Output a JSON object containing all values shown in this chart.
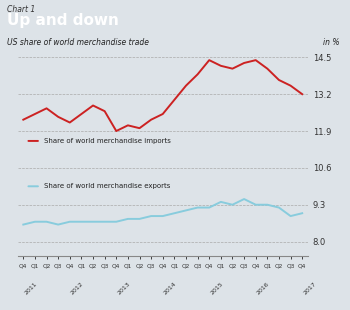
{
  "chart_label": "Chart 1",
  "title": "Up and down",
  "subtitle": "US share of world merchandise trade",
  "ylabel_right": "in %",
  "background_color": "#dde3e8",
  "header_bg": "#2b6ca8",
  "header_text_color": "#ffffff",
  "chart_label_bg": "#f0f0f0",
  "yticks": [
    8.0,
    9.3,
    10.6,
    11.9,
    13.2,
    14.5
  ],
  "ylim": [
    7.5,
    15.1
  ],
  "imports_color": "#cc2222",
  "exports_color": "#88ccdd",
  "imports_label": "Share of world merchandise imports",
  "exports_label": "Share of world merchandise exports",
  "x_labels": [
    "Q4",
    "Q1",
    "Q2",
    "Q3",
    "Q4",
    "Q1",
    "Q2",
    "Q3",
    "Q4",
    "Q1",
    "Q2",
    "Q3",
    "Q4",
    "Q1",
    "Q2",
    "Q3",
    "Q4",
    "Q1",
    "Q2",
    "Q3",
    "Q4",
    "Q1",
    "Q2",
    "Q3",
    "Q4"
  ],
  "year_labels": [
    "2011",
    "2012",
    "2013",
    "2014",
    "2015",
    "2016",
    "2017"
  ],
  "year_tick_positions": [
    0,
    4,
    8,
    12,
    16,
    20,
    24
  ],
  "imports": [
    12.3,
    12.5,
    12.7,
    12.4,
    12.2,
    12.5,
    12.8,
    12.6,
    11.9,
    12.1,
    12.0,
    12.3,
    12.5,
    13.0,
    13.5,
    13.9,
    14.4,
    14.2,
    14.1,
    14.3,
    14.4,
    14.1,
    13.7,
    13.5,
    13.2
  ],
  "exports": [
    8.6,
    8.7,
    8.7,
    8.6,
    8.7,
    8.7,
    8.7,
    8.7,
    8.7,
    8.8,
    8.8,
    8.9,
    8.9,
    9.0,
    9.1,
    9.2,
    9.2,
    9.4,
    9.3,
    9.5,
    9.3,
    9.3,
    9.2,
    8.9,
    9.0
  ],
  "grid_color": "#aaaaaa",
  "spine_color": "#888888",
  "text_color": "#222222",
  "tick_color": "#333333"
}
